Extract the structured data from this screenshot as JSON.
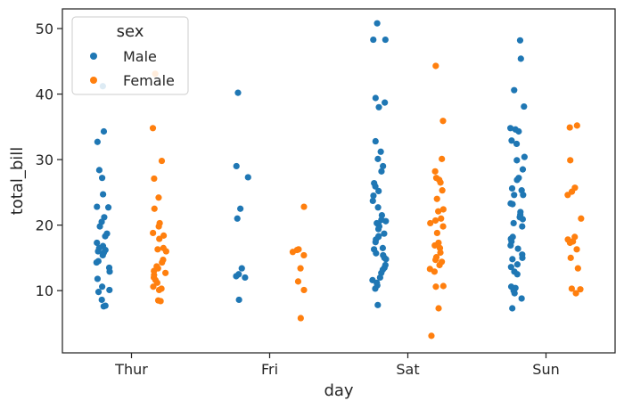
{
  "chart_data": {
    "type": "scatter",
    "subtype": "stripplot",
    "xlabel": "day",
    "ylabel": "total_bill",
    "categories": [
      "Thur",
      "Fri",
      "Sat",
      "Sun"
    ],
    "ylim": [
      0.5,
      53.0
    ],
    "yticks": [
      "10",
      "20",
      "30",
      "40",
      "50"
    ],
    "grid": false,
    "legend": {
      "title": "sex",
      "position": "top-left"
    },
    "series": [
      {
        "name": "Male",
        "color": "#1f77b4",
        "points": [
          [
            0,
            41.2
          ],
          [
            0,
            34.3
          ],
          [
            0,
            32.7
          ],
          [
            0,
            28.4
          ],
          [
            0,
            27.2
          ],
          [
            0,
            24.7
          ],
          [
            0,
            22.8
          ],
          [
            0,
            22.7
          ],
          [
            0,
            21.2
          ],
          [
            0,
            20.5
          ],
          [
            0,
            19.8
          ],
          [
            0,
            18.7
          ],
          [
            0,
            18.3
          ],
          [
            0,
            17.3
          ],
          [
            0,
            16.8
          ],
          [
            0,
            16.5
          ],
          [
            0,
            16.2
          ],
          [
            0,
            16.0
          ],
          [
            0,
            15.8
          ],
          [
            0,
            15.4
          ],
          [
            0,
            14.5
          ],
          [
            0,
            14.3
          ],
          [
            0,
            13.5
          ],
          [
            0,
            12.9
          ],
          [
            0,
            11.8
          ],
          [
            0,
            10.6
          ],
          [
            0,
            10.1
          ],
          [
            0,
            9.8
          ],
          [
            0,
            8.6
          ],
          [
            0,
            7.6
          ],
          [
            0,
            7.7
          ],
          [
            1,
            40.2
          ],
          [
            1,
            29.0
          ],
          [
            1,
            27.3
          ],
          [
            1,
            22.5
          ],
          [
            1,
            21.0
          ],
          [
            1,
            13.4
          ],
          [
            1,
            12.5
          ],
          [
            1,
            12.2
          ],
          [
            1,
            12.0
          ],
          [
            1,
            8.6
          ],
          [
            2,
            50.8
          ],
          [
            2,
            48.3
          ],
          [
            2,
            48.3
          ],
          [
            2,
            39.4
          ],
          [
            2,
            38.7
          ],
          [
            2,
            38.0
          ],
          [
            2,
            32.8
          ],
          [
            2,
            31.2
          ],
          [
            2,
            30.1
          ],
          [
            2,
            29.0
          ],
          [
            2,
            28.2
          ],
          [
            2,
            26.4
          ],
          [
            2,
            25.9
          ],
          [
            2,
            25.2
          ],
          [
            2,
            24.5
          ],
          [
            2,
            23.7
          ],
          [
            2,
            22.7
          ],
          [
            2,
            21.5
          ],
          [
            2,
            20.8
          ],
          [
            2,
            20.6
          ],
          [
            2,
            20.3
          ],
          [
            2,
            20.1
          ],
          [
            2,
            19.8
          ],
          [
            2,
            19.4
          ],
          [
            2,
            18.7
          ],
          [
            2,
            18.3
          ],
          [
            2,
            18.2
          ],
          [
            2,
            17.8
          ],
          [
            2,
            17.4
          ],
          [
            2,
            16.5
          ],
          [
            2,
            16.3
          ],
          [
            2,
            15.7
          ],
          [
            2,
            15.4
          ],
          [
            2,
            15.0
          ],
          [
            2,
            14.8
          ],
          [
            2,
            13.9
          ],
          [
            2,
            13.5
          ],
          [
            2,
            13.2
          ],
          [
            2,
            12.7
          ],
          [
            2,
            12.0
          ],
          [
            2,
            11.6
          ],
          [
            2,
            11.2
          ],
          [
            2,
            10.8
          ],
          [
            2,
            10.3
          ],
          [
            2,
            7.8
          ],
          [
            3,
            48.2
          ],
          [
            3,
            45.4
          ],
          [
            3,
            40.6
          ],
          [
            3,
            38.1
          ],
          [
            3,
            34.8
          ],
          [
            3,
            34.6
          ],
          [
            3,
            34.3
          ],
          [
            3,
            32.4
          ],
          [
            3,
            32.9
          ],
          [
            3,
            30.4
          ],
          [
            3,
            29.9
          ],
          [
            3,
            28.5
          ],
          [
            3,
            27.2
          ],
          [
            3,
            26.9
          ],
          [
            3,
            25.6
          ],
          [
            3,
            25.3
          ],
          [
            3,
            24.6
          ],
          [
            3,
            24.6
          ],
          [
            3,
            23.3
          ],
          [
            3,
            23.2
          ],
          [
            3,
            22.0
          ],
          [
            3,
            21.6
          ],
          [
            3,
            21.2
          ],
          [
            3,
            20.9
          ],
          [
            3,
            20.3
          ],
          [
            3,
            19.8
          ],
          [
            3,
            18.2
          ],
          [
            3,
            17.9
          ],
          [
            3,
            17.5
          ],
          [
            3,
            16.9
          ],
          [
            3,
            16.4
          ],
          [
            3,
            15.5
          ],
          [
            3,
            15.0
          ],
          [
            3,
            14.8
          ],
          [
            3,
            14.0
          ],
          [
            3,
            13.6
          ],
          [
            3,
            12.9
          ],
          [
            3,
            12.5
          ],
          [
            3,
            10.6
          ],
          [
            3,
            10.4
          ],
          [
            3,
            10.0
          ],
          [
            3,
            9.6
          ],
          [
            3,
            8.8
          ],
          [
            3,
            7.3
          ]
        ]
      },
      {
        "name": "Female",
        "color": "#ff7f0e",
        "points": [
          [
            0,
            43.1
          ],
          [
            0,
            34.8
          ],
          [
            0,
            29.8
          ],
          [
            0,
            27.1
          ],
          [
            0,
            24.2
          ],
          [
            0,
            22.5
          ],
          [
            0,
            20.3
          ],
          [
            0,
            19.8
          ],
          [
            0,
            18.8
          ],
          [
            0,
            18.4
          ],
          [
            0,
            17.9
          ],
          [
            0,
            16.5
          ],
          [
            0,
            16.3
          ],
          [
            0,
            16.0
          ],
          [
            0,
            14.7
          ],
          [
            0,
            14.3
          ],
          [
            0,
            13.7
          ],
          [
            0,
            13.4
          ],
          [
            0,
            13.0
          ],
          [
            0,
            12.7
          ],
          [
            0,
            12.4
          ],
          [
            0,
            12.0
          ],
          [
            0,
            11.6
          ],
          [
            0,
            11.2
          ],
          [
            0,
            10.6
          ],
          [
            0,
            10.3
          ],
          [
            0,
            10.1
          ],
          [
            0,
            8.5
          ],
          [
            0,
            8.4
          ],
          [
            1,
            22.8
          ],
          [
            1,
            16.3
          ],
          [
            1,
            16.2
          ],
          [
            1,
            15.9
          ],
          [
            1,
            15.4
          ],
          [
            1,
            13.4
          ],
          [
            1,
            11.4
          ],
          [
            1,
            10.1
          ],
          [
            1,
            5.8
          ],
          [
            2,
            44.3
          ],
          [
            2,
            35.9
          ],
          [
            2,
            30.1
          ],
          [
            2,
            28.2
          ],
          [
            2,
            27.2
          ],
          [
            2,
            26.9
          ],
          [
            2,
            26.5
          ],
          [
            2,
            25.3
          ],
          [
            2,
            24.0
          ],
          [
            2,
            22.4
          ],
          [
            2,
            22.1
          ],
          [
            2,
            21.0
          ],
          [
            2,
            20.7
          ],
          [
            2,
            20.3
          ],
          [
            2,
            19.8
          ],
          [
            2,
            18.8
          ],
          [
            2,
            17.3
          ],
          [
            2,
            16.9
          ],
          [
            2,
            16.5
          ],
          [
            2,
            15.8
          ],
          [
            2,
            15.1
          ],
          [
            2,
            14.7
          ],
          [
            2,
            14.4
          ],
          [
            2,
            13.9
          ],
          [
            2,
            13.3
          ],
          [
            2,
            12.9
          ],
          [
            2,
            10.6
          ],
          [
            2,
            10.7
          ],
          [
            2,
            7.3
          ],
          [
            2,
            3.1
          ],
          [
            3,
            35.2
          ],
          [
            3,
            34.9
          ],
          [
            3,
            29.9
          ],
          [
            3,
            25.7
          ],
          [
            3,
            25.1
          ],
          [
            3,
            24.6
          ],
          [
            3,
            21.0
          ],
          [
            3,
            18.2
          ],
          [
            3,
            17.8
          ],
          [
            3,
            17.5
          ],
          [
            3,
            17.3
          ],
          [
            3,
            16.3
          ],
          [
            3,
            15.0
          ],
          [
            3,
            13.4
          ],
          [
            3,
            10.3
          ],
          [
            3,
            10.2
          ],
          [
            3,
            9.6
          ]
        ]
      }
    ]
  }
}
